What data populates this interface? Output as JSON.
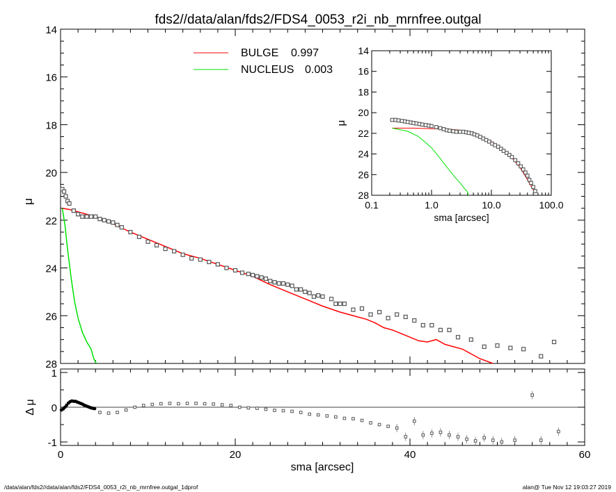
{
  "title": "fds2//data/alan/fds2/FDS4_0053_r2i_nb_mrnfree.outgal",
  "footer_left": "/data/alan/fds2//data/alan/fds2/FDS4_0053_r2i_nb_mrnfree.outgal_1dprof",
  "footer_right": "alan@  Tue Nov 12 19:03:27 2019",
  "colors": {
    "bulge": "#ff0000",
    "nucleus": "#00e000",
    "data": "#555555"
  },
  "chart_data": [
    {
      "type": "scatter",
      "ylabel": "μ",
      "xlim": [
        0,
        60
      ],
      "ylim": [
        28,
        14
      ],
      "yticks": [
        "14",
        "16",
        "18",
        "20",
        "22",
        "24",
        "26",
        "28"
      ],
      "legend": [
        {
          "name": "BULGE",
          "value": "0.997",
          "color": "#ff0000"
        },
        {
          "name": "NUCLEUS",
          "value": "0.003",
          "color": "#00e000"
        }
      ],
      "legend_placement": "top-center",
      "series": [
        {
          "key": "data",
          "marker": "square",
          "x": [
            0.2,
            0.4,
            0.6,
            0.8,
            1.0,
            1.5,
            2.0,
            2.5,
            3.0,
            3.5,
            4.0,
            4.5,
            5.0,
            5.5,
            6.0,
            6.5,
            7.0,
            8.0,
            9.0,
            10.0,
            11.0,
            12.0,
            13.0,
            14.0,
            15.0,
            16.0,
            17.0,
            18.0,
            19.0,
            20.0,
            20.8,
            21.5,
            22.0,
            22.5,
            23.0,
            23.5,
            24.0,
            24.5,
            25.0,
            25.5,
            26.0,
            26.5,
            27.0,
            27.5,
            28.0,
            28.5,
            29.0,
            29.5,
            30.0,
            31.0,
            31.5,
            32.0,
            32.5,
            33.5,
            34.5,
            35.5,
            36.5,
            37.5,
            38.5,
            39.5,
            40.5,
            41.5,
            42.5,
            43.5,
            44.5,
            45.5,
            47.0,
            48.5,
            50.0,
            51.5,
            53.0,
            55.0,
            56.5
          ],
          "y": [
            20.7,
            20.8,
            21.0,
            21.2,
            21.3,
            21.6,
            21.75,
            21.85,
            21.85,
            21.85,
            21.85,
            21.95,
            22.0,
            22.05,
            22.1,
            22.2,
            22.3,
            22.5,
            22.7,
            22.9,
            23.05,
            23.2,
            23.3,
            23.45,
            23.6,
            23.65,
            23.75,
            23.85,
            24.0,
            24.1,
            24.2,
            24.25,
            24.3,
            24.35,
            24.4,
            24.45,
            24.55,
            24.6,
            24.65,
            24.65,
            24.7,
            24.75,
            24.9,
            24.9,
            25.0,
            25.05,
            25.2,
            25.15,
            25.2,
            25.3,
            25.5,
            25.5,
            25.5,
            25.75,
            25.7,
            25.95,
            25.85,
            26.1,
            25.95,
            26.05,
            26.2,
            26.4,
            26.4,
            26.6,
            26.6,
            26.9,
            27.0,
            27.3,
            27.25,
            27.35,
            27.4,
            27.7,
            27.1
          ]
        },
        {
          "key": "bulge",
          "name": "BULGE",
          "type": "line",
          "color": "#ff0000",
          "x": [
            0.2,
            1,
            2,
            3,
            4,
            5,
            6,
            8,
            10,
            12,
            14,
            16,
            18,
            20,
            22,
            24,
            26,
            28,
            30,
            32,
            34,
            35,
            36,
            37,
            38,
            39,
            40,
            41,
            42,
            43,
            44,
            46,
            48,
            49.5
          ],
          "y": [
            21.5,
            21.55,
            21.65,
            21.75,
            21.85,
            22.0,
            22.15,
            22.5,
            22.8,
            23.1,
            23.4,
            23.6,
            23.85,
            24.1,
            24.35,
            24.7,
            25.0,
            25.3,
            25.6,
            25.85,
            26.05,
            26.15,
            26.3,
            26.5,
            26.6,
            26.75,
            26.9,
            27.05,
            27.1,
            27.0,
            27.2,
            27.4,
            27.8,
            28.1
          ]
        },
        {
          "key": "nucleus",
          "name": "NUCLEUS",
          "type": "line",
          "color": "#00e000",
          "x": [
            0.2,
            0.5,
            0.8,
            1.2,
            1.6,
            2.0,
            2.5,
            3.0,
            3.5,
            3.8,
            4.1
          ],
          "y": [
            21.5,
            22.2,
            23.2,
            24.4,
            25.4,
            26.1,
            26.7,
            27.1,
            27.4,
            27.8,
            28.1
          ]
        }
      ]
    },
    {
      "type": "scatter",
      "ylabel": "Δ μ",
      "xlabel": "sma [arcsec]",
      "xlim": [
        0,
        60
      ],
      "ylim": [
        -1.1,
        1.1
      ],
      "xticks": [
        "0",
        "20",
        "40",
        "60"
      ],
      "yticks": [
        "1",
        "0",
        "-1"
      ],
      "series": [
        {
          "key": "residual_inner",
          "marker": "dot",
          "x": [
            0.1,
            0.3,
            0.5,
            0.7,
            0.9,
            1.1,
            1.3,
            1.5,
            1.7,
            1.9,
            2.1,
            2.3,
            2.5,
            2.7,
            2.9,
            3.1,
            3.3,
            3.5,
            3.7,
            3.9
          ],
          "y": [
            -0.08,
            -0.05,
            0.0,
            0.06,
            0.12,
            0.16,
            0.18,
            0.17,
            0.17,
            0.15,
            0.13,
            0.11,
            0.09,
            0.06,
            0.04,
            0.02,
            0.0,
            -0.02,
            -0.03,
            -0.04
          ]
        },
        {
          "key": "residual",
          "marker": "square",
          "x": [
            4.5,
            5.5,
            6.5,
            7.5,
            8.5,
            9.5,
            10.5,
            11.5,
            12.5,
            13.5,
            14.5,
            15.5,
            16.5,
            17.5,
            18.5,
            19.5,
            20.5,
            21.5,
            22.5,
            23.5,
            24.5,
            25.5,
            26.5,
            27.5,
            28.5,
            29.5,
            30.5,
            31.5,
            32.5,
            33.5,
            34.5,
            35.5,
            36.5,
            37.5,
            38.5,
            39.5,
            40.5,
            41.5,
            42.5,
            43.5,
            44.5,
            45.5,
            46.5,
            47.5,
            48.5,
            49.5,
            50.5,
            52,
            54,
            55,
            57
          ],
          "y": [
            -0.15,
            -0.17,
            -0.15,
            -0.08,
            0.0,
            0.05,
            0.08,
            0.1,
            0.11,
            0.1,
            0.11,
            0.11,
            0.1,
            0.09,
            0.07,
            0.05,
            0.0,
            -0.02,
            -0.03,
            -0.06,
            -0.09,
            -0.1,
            -0.12,
            -0.15,
            -0.2,
            -0.22,
            -0.25,
            -0.28,
            -0.32,
            -0.33,
            -0.38,
            -0.45,
            -0.5,
            -0.55,
            -0.6,
            -0.85,
            -0.4,
            -0.8,
            -0.75,
            -0.72,
            -0.8,
            -0.85,
            -0.92,
            -0.97,
            -0.88,
            -0.95,
            -1.0,
            -0.95,
            0.35,
            -0.95,
            -0.7
          ]
        }
      ]
    },
    {
      "type": "scatter",
      "xscale": "log",
      "xlabel": "sma [arcsec]",
      "ylabel": "μ",
      "xlim": [
        0.1,
        100
      ],
      "ylim": [
        28,
        14
      ],
      "xticks": [
        "0.1",
        "1.0",
        "10.0",
        "100.0"
      ],
      "yticks": [
        "14",
        "16",
        "18",
        "20",
        "22",
        "24",
        "26",
        "28"
      ],
      "series": [
        {
          "key": "data",
          "marker": "square",
          "x": [
            0.22,
            0.25,
            0.28,
            0.32,
            0.36,
            0.4,
            0.45,
            0.5,
            0.56,
            0.63,
            0.7,
            0.8,
            0.9,
            1.0,
            1.2,
            1.4,
            1.6,
            1.8,
            2.0,
            2.3,
            2.6,
            3.0,
            3.4,
            3.8,
            4.2,
            4.7,
            5.2,
            5.8,
            6.5,
            7.3,
            8.2,
            9.2,
            10.3,
            11.5,
            13,
            14.5,
            16,
            18,
            20,
            22,
            25,
            28,
            31,
            34,
            37,
            40,
            43,
            46,
            50,
            54
          ],
          "y": [
            20.7,
            20.7,
            20.75,
            20.8,
            20.85,
            20.9,
            20.95,
            21.0,
            21.05,
            21.1,
            21.15,
            21.2,
            21.25,
            21.3,
            21.4,
            21.5,
            21.6,
            21.7,
            21.75,
            21.8,
            21.85,
            21.85,
            21.85,
            21.9,
            21.95,
            22.0,
            22.1,
            22.2,
            22.35,
            22.5,
            22.65,
            22.8,
            23.0,
            23.15,
            23.3,
            23.5,
            23.7,
            23.9,
            24.1,
            24.3,
            24.6,
            24.9,
            25.2,
            25.5,
            25.8,
            26.1,
            26.5,
            26.8,
            27.2,
            27.6
          ]
        },
        {
          "key": "bulge",
          "name": "BULGE",
          "type": "line",
          "color": "#ff0000",
          "x": [
            0.22,
            0.5,
            1.0,
            2.0,
            3.0,
            4.0,
            5.0,
            7.0,
            10,
            15,
            20,
            30,
            40,
            50
          ],
          "y": [
            21.5,
            21.5,
            21.55,
            21.6,
            21.7,
            21.8,
            21.95,
            22.35,
            22.8,
            23.5,
            24.1,
            25.3,
            26.5,
            27.5
          ]
        },
        {
          "key": "nucleus",
          "name": "NUCLEUS",
          "type": "line",
          "color": "#00e000",
          "x": [
            0.22,
            0.4,
            0.6,
            0.8,
            1.0,
            1.3,
            1.6,
            2.0,
            2.5,
            3.0,
            3.5,
            4.0,
            4.1
          ],
          "y": [
            21.5,
            21.8,
            22.3,
            22.9,
            23.4,
            24.2,
            24.9,
            25.6,
            26.3,
            26.8,
            27.3,
            27.7,
            28.0
          ]
        }
      ]
    }
  ]
}
